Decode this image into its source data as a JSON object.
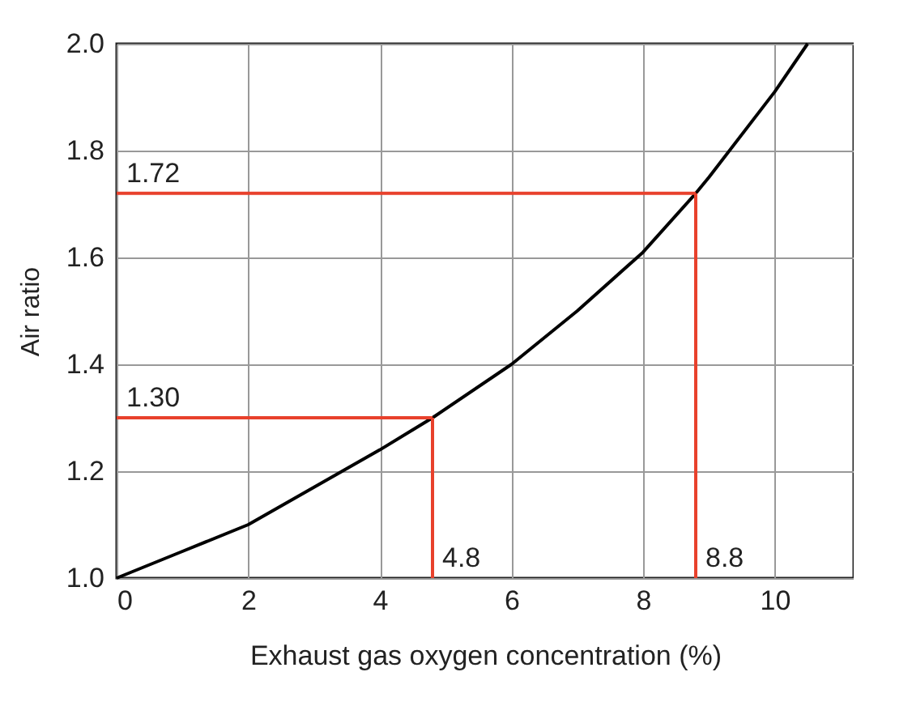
{
  "chart_data": {
    "type": "line",
    "xlabel": "Exhaust gas oxygen concentration (%)",
    "ylabel": "Air ratio",
    "x": [
      0,
      1,
      2,
      3,
      4,
      4.8,
      6,
      7,
      8,
      8.8,
      9,
      10,
      10.5
    ],
    "series": [
      {
        "color": "#000000",
        "values": [
          1.0,
          1.05,
          1.1,
          1.17,
          1.24,
          1.3,
          1.4,
          1.5,
          1.61,
          1.72,
          1.75,
          1.91,
          2.0
        ]
      }
    ],
    "xlim": [
      0,
      11.2
    ],
    "xticks": [
      0,
      2,
      4,
      6,
      8,
      10
    ],
    "ylim": [
      1.0,
      2.0
    ],
    "yticks": [
      {
        "value": 1,
        "label": "1.0"
      },
      1.2,
      1.4,
      1.6,
      1.8,
      {
        "value": 2,
        "label": "2.0"
      }
    ],
    "ref_lines": [
      {
        "axis": "y",
        "value": 1.3,
        "label": "1.30",
        "color": "#e8412c"
      },
      {
        "axis": "x",
        "value": 4.8,
        "label": "4.8",
        "color": "#e8412c"
      },
      {
        "axis": "y",
        "value": 1.72,
        "label": "1.72",
        "color": "#e8412c"
      },
      {
        "axis": "x",
        "value": 8.8,
        "label": "8.8",
        "color": "#e8412c"
      }
    ],
    "grid": true,
    "marker": "none",
    "line_style": "solid",
    "legend": false
  }
}
